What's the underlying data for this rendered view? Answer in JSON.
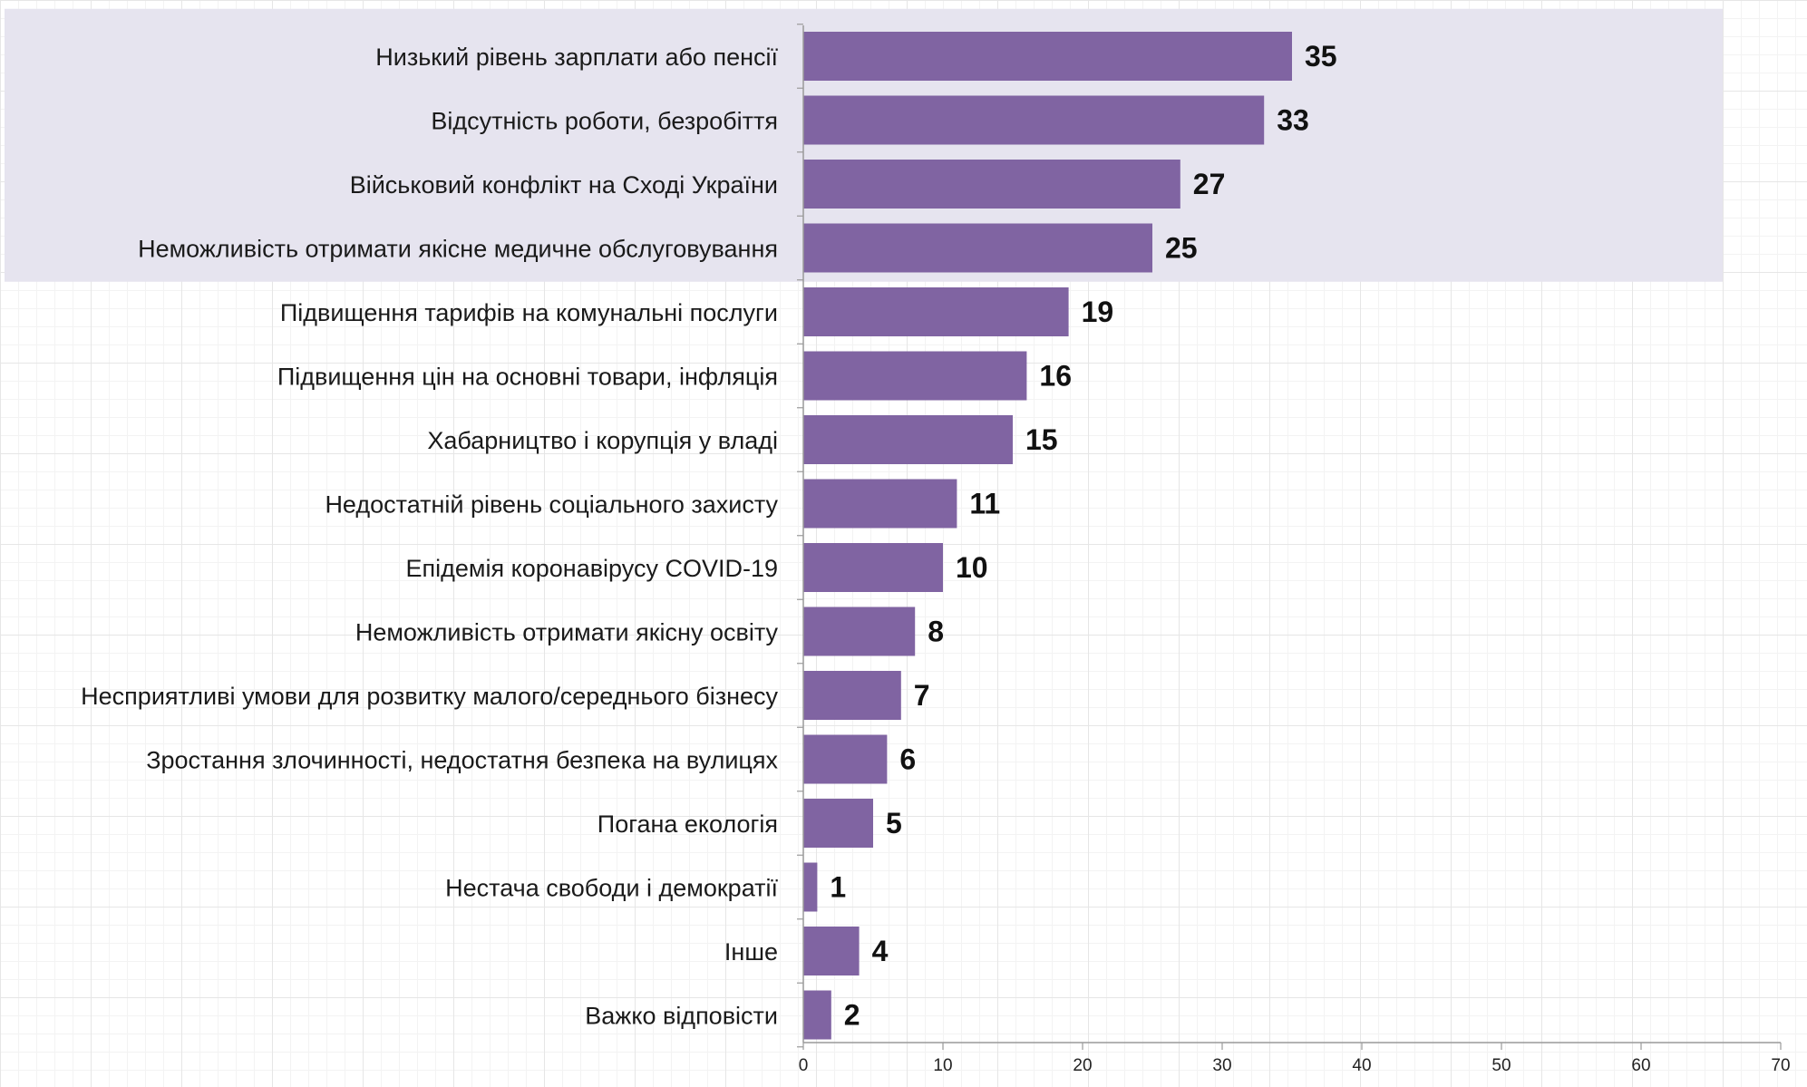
{
  "chart_data": {
    "type": "bar",
    "orientation": "horizontal",
    "categories": [
      "Низький рівень зарплати або пенсії",
      "Відсутність роботи, безробіття",
      "Військовий конфлікт на Сході України",
      "Неможливість отримати якісне медичне обслуговування",
      "Підвищення тарифів на комунальні послуги",
      "Підвищення цін на основні товари, інфляція",
      "Хабарництво і корупція у владі",
      "Недостатній рівень соціального захисту",
      "Епідемія коронавірусу COVID-19",
      "Неможливість отримати якісну освіту",
      "Несприятливі умови для розвитку малого/середнього бізнесу",
      "Зростання злочинності, недостатня безпека на вулицях",
      "Погана екологія",
      "Нестача свободи і демократії",
      "Інше",
      "Важко відповісти"
    ],
    "values": [
      35,
      33,
      27,
      25,
      19,
      16,
      15,
      11,
      10,
      8,
      7,
      6,
      5,
      1,
      4,
      2
    ],
    "x_ticks": [
      "0",
      "10",
      "20",
      "30",
      "40",
      "50",
      "60",
      "70"
    ],
    "xlim": [
      0,
      70
    ],
    "highlighted_top_n": 4,
    "grid": false,
    "colors": {
      "bar": "#8064a2",
      "highlight_band": "#e6e4ef",
      "axis": "#9a9a9a"
    }
  }
}
